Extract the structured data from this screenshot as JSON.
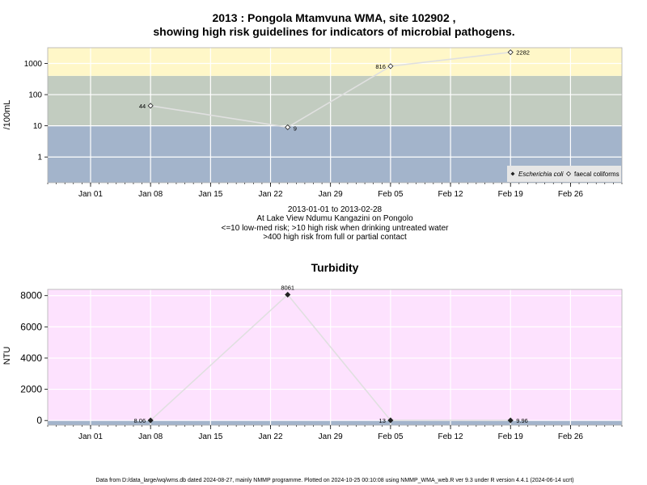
{
  "header": {
    "title_line1": "2013 : Pongola Mtamvuna WMA, site 102902 ,",
    "title_line2": "showing high risk guidelines for indicators of microbial pathogens."
  },
  "subtitle": {
    "line1": "2013-01-01 to 2013-02-28",
    "line2": "At Lake View Ndumu Kangazini on Pongolo",
    "line3": "<=10 low-med risk; >10 high risk when drinking untreated water",
    "line4": ">400 high risk from full or partial contact"
  },
  "footer": {
    "text": "Data from D:/data_large/wq/wms.db dated 2024-08-27, mainly NMMP programme. Plotted on 2024-10-25 00:10:08 using NMMP_WMA_web.R ver 9.3 under R version 4.4.1 (2024-06-14 ucrt)"
  },
  "colors": {
    "band_high": "#fff7c8",
    "band_mid": "#c2ccc0",
    "band_low": "#a3b4cb",
    "turbidity_bg": "#fde2fe",
    "turbidity_floor": "#a3b4cb",
    "gridline": "#ffffff",
    "series_line": "#e0e0e0"
  },
  "chart_data": [
    {
      "type": "line",
      "title": "",
      "ylabel": "/100mL",
      "y_scale": "log",
      "ylim": [
        0.15,
        3200
      ],
      "y_ticks": [
        1,
        10,
        100,
        1000
      ],
      "y_tick_labels": [
        "1",
        "10",
        "100",
        "1000"
      ],
      "xlim": [
        "2012-12-27",
        "2013-03-04"
      ],
      "x_ticks": [
        "2013-01-01",
        "2013-01-08",
        "2013-01-15",
        "2013-01-22",
        "2013-01-29",
        "2013-02-05",
        "2013-02-12",
        "2013-02-19",
        "2013-02-26"
      ],
      "x_tick_labels": [
        "Jan 01",
        "Jan 08",
        "Jan 15",
        "Jan 22",
        "Jan 29",
        "Feb 05",
        "Feb 12",
        "Feb 19",
        "Feb 26"
      ],
      "risk_bands": [
        {
          "from": 0.15,
          "to": 10,
          "color": "#a3b4cb"
        },
        {
          "from": 10,
          "to": 400,
          "color": "#c2ccc0"
        },
        {
          "from": 400,
          "to": 3200,
          "color": "#fff7c8"
        }
      ],
      "legend_position": "bottom-right",
      "series": [
        {
          "name": "Escherichia coli",
          "marker": "filled-diamond",
          "x": [],
          "y": []
        },
        {
          "name": "faecal coliforms",
          "marker": "open-diamond",
          "x": [
            "2013-01-08",
            "2013-01-24",
            "2013-02-05",
            "2013-02-19"
          ],
          "y": [
            44,
            9,
            816,
            2282
          ],
          "labels": [
            "44",
            "9",
            "816",
            "2282"
          ]
        }
      ]
    },
    {
      "type": "line",
      "title": "Turbidity",
      "ylabel": "NTU",
      "ylim": [
        -300,
        8400
      ],
      "y_ticks": [
        0,
        2000,
        4000,
        6000,
        8000
      ],
      "y_tick_labels": [
        "0",
        "2000",
        "4000",
        "6000",
        "8000"
      ],
      "xlim": [
        "2012-12-27",
        "2013-03-04"
      ],
      "x_ticks": [
        "2013-01-01",
        "2013-01-08",
        "2013-01-15",
        "2013-01-22",
        "2013-01-29",
        "2013-02-05",
        "2013-02-12",
        "2013-02-19",
        "2013-02-26"
      ],
      "x_tick_labels": [
        "Jan 01",
        "Jan 08",
        "Jan 15",
        "Jan 22",
        "Jan 29",
        "Feb 05",
        "Feb 12",
        "Feb 19",
        "Feb 26"
      ],
      "series": [
        {
          "name": "",
          "marker": "filled-diamond",
          "x": [
            "2013-01-08",
            "2013-01-24",
            "2013-02-05",
            "2013-02-19"
          ],
          "y": [
            8.06,
            8061,
            13,
            9.96
          ],
          "labels": [
            "8.06",
            "8061",
            "13",
            "9.96"
          ]
        }
      ]
    }
  ]
}
